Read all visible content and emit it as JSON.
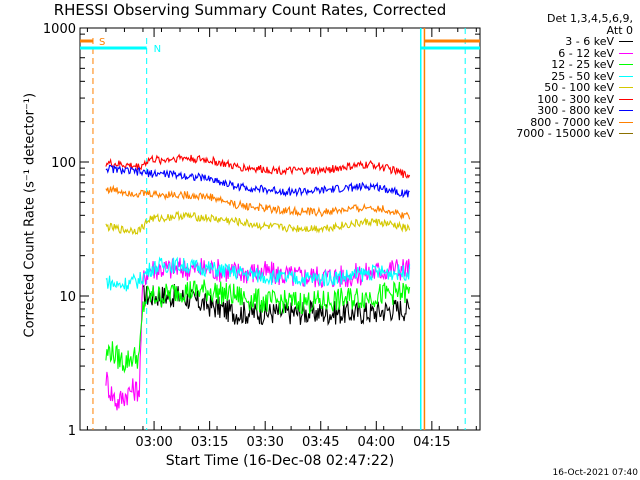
{
  "chart_data": {
    "type": "line",
    "title": "RHESSI Observing Summary Count Rates, Corrected",
    "xlabel": "Start Time (16-Dec-08 02:47:22)",
    "ylabel": "Corrected Count Rate (s⁻¹ detector⁻¹)",
    "yscale": "log",
    "ylim": [
      1,
      1000
    ],
    "yticks": [
      1,
      10,
      100,
      1000
    ],
    "ytick_labels": [
      "1",
      "10",
      "100",
      "1000"
    ],
    "xlim_minutes_after_0247": [
      -7,
      101
    ],
    "xticks_minutes_after_0247": [
      13,
      28,
      43,
      58,
      73,
      88
    ],
    "xtick_labels": [
      "03:00",
      "03:15",
      "03:30",
      "03:45",
      "04:00",
      "04:15"
    ],
    "legend_header": [
      "Det 1,3,4,5,6,9,",
      "Att 0"
    ],
    "legend_position": "outside-right",
    "series": [
      {
        "name": "3 - 6 keV",
        "color": "#000000",
        "x": [
          10,
          12,
          15,
          20,
          28,
          35,
          43,
          50,
          58,
          65,
          72,
          77,
          79,
          81,
          82
        ],
        "values": [
          10,
          10,
          10,
          10,
          8.5,
          7.5,
          7.5,
          7.5,
          7.5,
          7.5,
          7.5,
          8,
          8,
          8,
          8
        ]
      },
      {
        "name": "6 - 12 keV",
        "color": "#ff00ff",
        "x": [
          0,
          1,
          3,
          5,
          7,
          9,
          10,
          11,
          12,
          15,
          20,
          28,
          35,
          43,
          50,
          58,
          65,
          72,
          77,
          79,
          81,
          82
        ],
        "values": [
          2.5,
          2,
          1.6,
          1.8,
          2,
          2,
          13,
          15,
          16,
          16,
          16,
          16,
          15,
          15,
          14,
          14,
          14,
          15,
          16,
          16,
          16,
          16
        ]
      },
      {
        "name": "12 - 25 keV",
        "color": "#00ff00",
        "x": [
          0,
          1,
          3,
          5,
          7,
          9,
          10,
          11,
          12,
          15,
          20,
          28,
          35,
          43,
          50,
          58,
          65,
          72,
          77,
          79,
          81,
          82
        ],
        "values": [
          3.5,
          4,
          3.5,
          3.2,
          3.5,
          3.5,
          8,
          10,
          10,
          10,
          11,
          11,
          10,
          9,
          9,
          9,
          9.5,
          10,
          10.5,
          10.5,
          10.5,
          10.5
        ]
      },
      {
        "name": "25 - 50 keV",
        "color": "#00ffff",
        "x": [
          0,
          3,
          6,
          9,
          12,
          15,
          20,
          28,
          35,
          43,
          50,
          58,
          65,
          72,
          77,
          79,
          81,
          82
        ],
        "values": [
          13,
          12,
          12.5,
          13,
          16,
          17,
          17,
          16,
          15,
          14,
          13.5,
          13.5,
          14,
          15,
          15,
          15,
          15,
          15
        ]
      },
      {
        "name": "50 - 100 keV",
        "color": "#d4c800",
        "x": [
          0,
          5,
          9,
          12,
          15,
          20,
          28,
          35,
          43,
          50,
          58,
          65,
          72,
          77,
          79,
          81,
          82
        ],
        "values": [
          33,
          31,
          31,
          38,
          38,
          40,
          38,
          36,
          33,
          32,
          32,
          34,
          36,
          34,
          33,
          32,
          32
        ]
      },
      {
        "name": "100 - 300 keV",
        "color": "#ff0000",
        "x": [
          0,
          5,
          9,
          12,
          15,
          20,
          28,
          35,
          43,
          50,
          58,
          65,
          72,
          77,
          79,
          81,
          82
        ],
        "values": [
          98,
          95,
          92,
          105,
          103,
          108,
          103,
          92,
          88,
          86,
          86,
          92,
          96,
          88,
          84,
          80,
          80
        ]
      },
      {
        "name": "300 - 800 keV",
        "color": "#0000ff",
        "x": [
          0,
          5,
          9,
          12,
          15,
          20,
          28,
          35,
          43,
          50,
          58,
          65,
          72,
          77,
          79,
          81,
          82
        ],
        "values": [
          90,
          86,
          84,
          82,
          82,
          80,
          75,
          66,
          62,
          60,
          61,
          64,
          66,
          62,
          60,
          58,
          58
        ]
      },
      {
        "name": "800 - 7000 keV",
        "color": "#ff8000",
        "x": [
          0,
          5,
          9,
          12,
          15,
          20,
          28,
          35,
          43,
          50,
          58,
          65,
          72,
          77,
          79,
          81,
          82
        ],
        "values": [
          63,
          60,
          58,
          58,
          57,
          57,
          55,
          48,
          45,
          43,
          42,
          44,
          46,
          43,
          41,
          40,
          40
        ]
      },
      {
        "name": "7000 - 15000 keV",
        "color": "#8b7000",
        "x": [],
        "values": []
      }
    ],
    "annotations": [
      {
        "label": "S",
        "color": "#ff8000"
      },
      {
        "label": "N",
        "color": "#00ffff"
      }
    ],
    "grid": false
  },
  "footer": {
    "date_stamp": "16-Oct-2021 07:40"
  }
}
